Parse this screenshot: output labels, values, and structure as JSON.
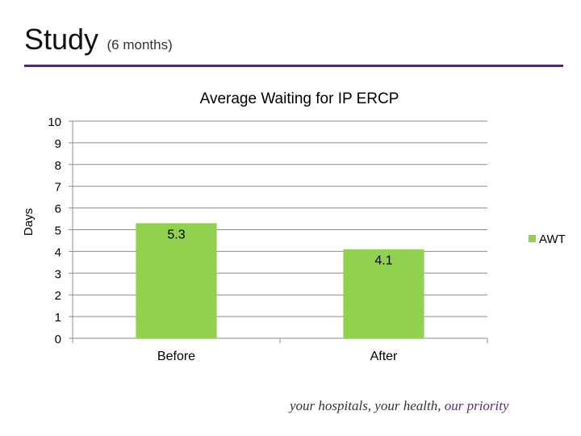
{
  "slide": {
    "title": "Study",
    "subtitle": "(6 months)",
    "footer_text": "your hospitals, your health,",
    "footer_accent": "our priority",
    "rule_color": "#4b2c6f"
  },
  "chart_data": {
    "type": "bar",
    "title": "Average Waiting for IP ERCP",
    "xlabel": "",
    "ylabel": "Days",
    "categories": [
      "Before",
      "After"
    ],
    "series": [
      {
        "name": "AWT",
        "values": [
          5.3,
          4.1
        ],
        "color": "#92d050",
        "data_labels": [
          "5.3",
          "4.1"
        ]
      }
    ],
    "ylim": [
      0,
      10
    ],
    "yticks": [
      0,
      1,
      2,
      3,
      4,
      5,
      6,
      7,
      8,
      9,
      10
    ],
    "grid": true,
    "legend": "right"
  }
}
